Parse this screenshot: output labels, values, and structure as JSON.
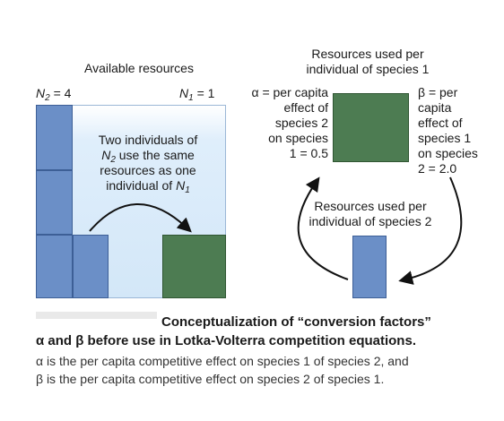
{
  "left_panel": {
    "title": "Available resources",
    "n2_label": "N",
    "n2_sub": "2",
    "n2_value": " = 4",
    "n1_label": "N",
    "n1_sub": "1",
    "n1_value": " = 1",
    "center_text_line1": "Two individuals of",
    "center_text_line2_var": "N",
    "center_text_line2_sub": "2",
    "center_text_line2_rest": " use the same",
    "center_text_line3": "resources as one",
    "center_text_line4_pre": "individual of ",
    "center_text_line4_var": "N",
    "center_text_line4_sub": "1"
  },
  "right_panel": {
    "top_label_line1": "Resources used per",
    "top_label_line2": "individual of species 1",
    "alpha_lines": [
      "α = per capita",
      "effect of",
      "species 2",
      "on species",
      "1 = 0.5"
    ],
    "beta_lines": [
      "β = per",
      "capita",
      "effect of",
      "species 1",
      "on species",
      "2 = 2.0"
    ],
    "bottom_label_line1": "Resources used per",
    "bottom_label_line2": "individual of species 2"
  },
  "caption": {
    "title_line1": "Conceptualization of “conversion factors”",
    "title_line2": "α and β before use in Lotka-Volterra competition equations.",
    "body_line1": "α is the per capita competitive effect on species 1 of species 2, and",
    "body_line2": "β is the per capita competitive effect on species 2 of species 1."
  },
  "colors": {
    "species2_blue": "#6b8fc7",
    "species1_green": "#4d7c52",
    "resource_bg": "#dfeefb"
  }
}
